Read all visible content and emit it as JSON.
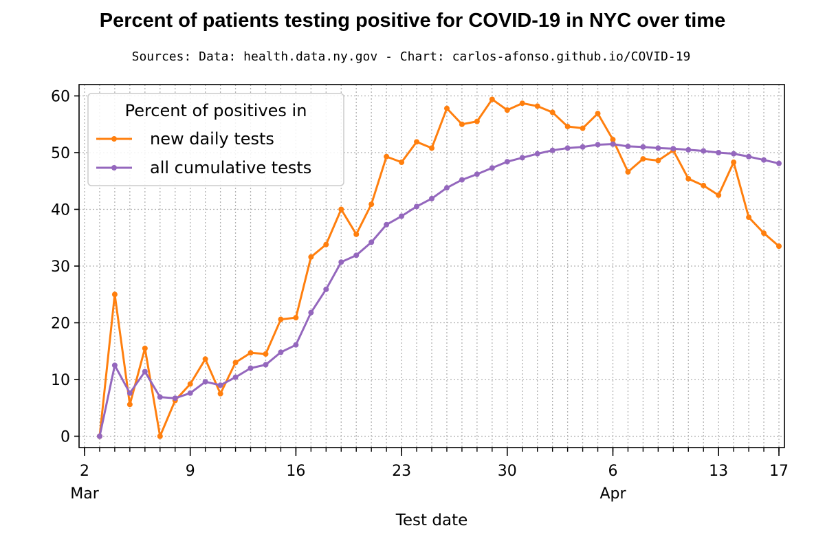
{
  "chart_data": {
    "type": "line",
    "title": "Percent of patients testing positive for COVID-19 in NYC over time",
    "subtitle": "Sources: Data: health.data.ny.gov - Chart: carlos-afonso.github.io/COVID-19",
    "xlabel": "Test date",
    "ylabel": "",
    "xlim": [
      "2020-03-02",
      "2020-04-17"
    ],
    "ylim": [
      -2,
      62
    ],
    "y_ticks": [
      0,
      10,
      20,
      30,
      40,
      50,
      60
    ],
    "x_ticks": [
      {
        "date": "2020-03-02",
        "label": "2",
        "month_label": "Mar"
      },
      {
        "date": "2020-03-09",
        "label": "9",
        "month_label": ""
      },
      {
        "date": "2020-03-16",
        "label": "16",
        "month_label": ""
      },
      {
        "date": "2020-03-23",
        "label": "23",
        "month_label": ""
      },
      {
        "date": "2020-03-30",
        "label": "30",
        "month_label": ""
      },
      {
        "date": "2020-04-06",
        "label": "6",
        "month_label": "Apr"
      },
      {
        "date": "2020-04-13",
        "label": "13",
        "month_label": ""
      },
      {
        "date": "2020-04-17",
        "label": "17",
        "month_label": ""
      }
    ],
    "grid": true,
    "legend": {
      "title": "Percent of positives in",
      "placement": "top-left"
    },
    "x": [
      "2020-03-03",
      "2020-03-04",
      "2020-03-05",
      "2020-03-06",
      "2020-03-07",
      "2020-03-08",
      "2020-03-09",
      "2020-03-10",
      "2020-03-11",
      "2020-03-12",
      "2020-03-13",
      "2020-03-14",
      "2020-03-15",
      "2020-03-16",
      "2020-03-17",
      "2020-03-18",
      "2020-03-19",
      "2020-03-20",
      "2020-03-21",
      "2020-03-22",
      "2020-03-23",
      "2020-03-24",
      "2020-03-25",
      "2020-03-26",
      "2020-03-27",
      "2020-03-28",
      "2020-03-29",
      "2020-03-30",
      "2020-03-31",
      "2020-04-01",
      "2020-04-02",
      "2020-04-03",
      "2020-04-04",
      "2020-04-05",
      "2020-04-06",
      "2020-04-07",
      "2020-04-08",
      "2020-04-09",
      "2020-04-10",
      "2020-04-11",
      "2020-04-12",
      "2020-04-13",
      "2020-04-14",
      "2020-04-15",
      "2020-04-16",
      "2020-04-17"
    ],
    "series": [
      {
        "name": "new daily tests",
        "color": "#ff7f0e",
        "values": [
          0,
          25,
          5.6,
          15.5,
          0,
          6.3,
          9.2,
          13.6,
          7.5,
          13,
          14.7,
          14.5,
          20.6,
          20.9,
          31.6,
          33.8,
          40,
          35.6,
          40.9,
          49.3,
          48.3,
          51.9,
          50.8,
          57.8,
          55,
          55.5,
          59.4,
          57.5,
          58.7,
          58.2,
          57.1,
          54.6,
          54.3,
          56.9,
          52.3,
          46.6,
          48.9,
          48.6,
          50.4,
          45.4,
          44.2,
          42.5,
          48.3,
          38.6,
          35.8,
          33.5
        ]
      },
      {
        "name": "all cumulative tests",
        "color": "#9467bd",
        "values": [
          0,
          12.5,
          7.6,
          11.4,
          6.9,
          6.7,
          7.6,
          9.6,
          9,
          10.4,
          12,
          12.6,
          14.8,
          16.1,
          21.8,
          25.9,
          30.7,
          31.9,
          34.2,
          37.3,
          38.8,
          40.5,
          41.9,
          43.8,
          45.2,
          46.2,
          47.3,
          48.4,
          49.1,
          49.8,
          50.4,
          50.8,
          51,
          51.4,
          51.5,
          51.1,
          51,
          50.8,
          50.7,
          50.5,
          50.3,
          50,
          49.8,
          49.3,
          48.7,
          48.1
        ]
      }
    ]
  }
}
